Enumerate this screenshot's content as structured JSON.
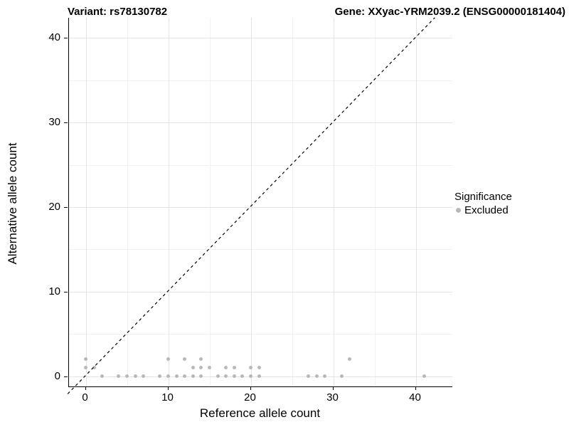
{
  "titles": {
    "variant": "Variant: rs78130782",
    "gene": "Gene: XXyac-YRM2039.2 (ENSG00000181404)"
  },
  "chart_data": {
    "type": "scatter",
    "xlabel": "Reference allele count",
    "ylabel": "Alternative allele count",
    "xlim": [
      -2.1,
      44.4
    ],
    "ylim": [
      -1.25,
      42.4
    ],
    "x_ticks": [
      0,
      10,
      20,
      30,
      40
    ],
    "y_ticks": [
      0,
      10,
      20,
      30,
      40
    ],
    "x_minor_ticks": [
      5,
      15,
      25,
      35
    ],
    "y_minor_ticks": [
      5,
      15,
      25,
      35
    ],
    "grid": true,
    "diagonal_line": {
      "equation": "y = x",
      "style": "dashed",
      "color": "#000000"
    },
    "series": [
      {
        "name": "Excluded",
        "color": "#b9b9b9",
        "points": [
          [
            2,
            0
          ],
          [
            4,
            0
          ],
          [
            5,
            0
          ],
          [
            6,
            0
          ],
          [
            7,
            0
          ],
          [
            9,
            0
          ],
          [
            10,
            0
          ],
          [
            11,
            0
          ],
          [
            12,
            0
          ],
          [
            13,
            0
          ],
          [
            14,
            0
          ],
          [
            16,
            0
          ],
          [
            17,
            0
          ],
          [
            18,
            0
          ],
          [
            19,
            0
          ],
          [
            20,
            0
          ],
          [
            21,
            0
          ],
          [
            27,
            0
          ],
          [
            28,
            0
          ],
          [
            29,
            0
          ],
          [
            31,
            0
          ],
          [
            41,
            0
          ],
          [
            0,
            1
          ],
          [
            1,
            1
          ],
          [
            13,
            1
          ],
          [
            14,
            1
          ],
          [
            15,
            1
          ],
          [
            17,
            1
          ],
          [
            18,
            1
          ],
          [
            20,
            1
          ],
          [
            21,
            1
          ],
          [
            0,
            2
          ],
          [
            10,
            2
          ],
          [
            12,
            2
          ],
          [
            14,
            2
          ],
          [
            32,
            2
          ]
        ]
      }
    ],
    "legend": {
      "title": "Significance",
      "position": "right",
      "entries": [
        {
          "label": "Excluded",
          "color": "#b9b9b9"
        }
      ]
    }
  },
  "colors": {
    "grid_major": "#e4e4e4",
    "grid_minor": "#f1f1f1",
    "axis": "#000000",
    "point": "#b9b9b9"
  }
}
